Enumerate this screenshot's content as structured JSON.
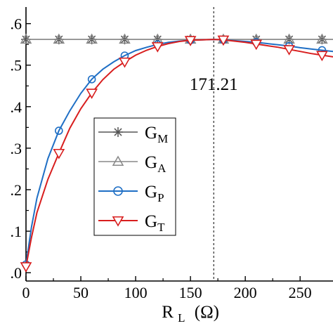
{
  "chart_data": {
    "type": "line",
    "xlabel": {
      "main": "R",
      "sub": "L",
      "unit": "(Ω)"
    },
    "ylabel": "",
    "xlim": [
      0,
      280
    ],
    "ylim": [
      -0.02,
      0.64
    ],
    "xticks": [
      0,
      50,
      100,
      150,
      200,
      250
    ],
    "xtick_labels": [
      "0",
      "50",
      "100",
      "150",
      "200",
      "250"
    ],
    "yticks": [
      0.0,
      0.1,
      0.2,
      0.3,
      0.4,
      0.5,
      0.6
    ],
    "ytick_labels": [
      ".0",
      ".1",
      ".2",
      ".3",
      ".4",
      ".5",
      ".6"
    ],
    "annotation": {
      "x": 171.21,
      "text": "171.21"
    },
    "legend_position": "center-left",
    "grid": false,
    "series": [
      {
        "name": "G",
        "sub": "M",
        "color": "#555555",
        "marker": "asterisk",
        "x": [
          0,
          30,
          60,
          90,
          120,
          150,
          180,
          210,
          240,
          270,
          280
        ],
        "y": [
          0.562,
          0.562,
          0.562,
          0.562,
          0.562,
          0.562,
          0.562,
          0.562,
          0.562,
          0.562,
          0.562
        ],
        "marker_x": [
          0,
          30,
          60,
          90,
          120,
          150,
          180,
          210,
          240,
          270
        ]
      },
      {
        "name": "G",
        "sub": "A",
        "color": "#888888",
        "marker": "triangle-up",
        "x": [
          0,
          30,
          60,
          90,
          120,
          150,
          180,
          210,
          240,
          270,
          280
        ],
        "y": [
          0.562,
          0.562,
          0.562,
          0.562,
          0.562,
          0.562,
          0.562,
          0.562,
          0.562,
          0.562,
          0.562
        ],
        "marker_x": [
          0,
          30,
          60,
          90,
          120,
          150,
          180,
          210,
          240,
          270
        ]
      },
      {
        "name": "G",
        "sub": "P",
        "color": "#1f6fc5",
        "marker": "circle",
        "x": [
          0,
          5,
          10,
          20,
          30,
          40,
          50,
          60,
          70,
          80,
          90,
          100,
          110,
          120,
          130,
          140,
          150,
          160,
          171.21,
          180,
          190,
          200,
          210,
          220,
          230,
          240,
          250,
          260,
          270,
          280
        ],
        "y": [
          0.02,
          0.11,
          0.18,
          0.275,
          0.342,
          0.39,
          0.432,
          0.466,
          0.49,
          0.508,
          0.523,
          0.535,
          0.543,
          0.55,
          0.555,
          0.558,
          0.56,
          0.561,
          0.562,
          0.561,
          0.559,
          0.557,
          0.555,
          0.552,
          0.549,
          0.546,
          0.542,
          0.539,
          0.536,
          0.533
        ],
        "marker_x": [
          0,
          30,
          60,
          90,
          120,
          150,
          180,
          210,
          240,
          270
        ]
      },
      {
        "name": "G",
        "sub": "T",
        "color": "#d81e1e",
        "marker": "triangle-down",
        "x": [
          0,
          5,
          10,
          20,
          30,
          40,
          50,
          60,
          70,
          80,
          90,
          100,
          110,
          120,
          130,
          140,
          150,
          160,
          171.21,
          180,
          190,
          200,
          210,
          220,
          230,
          240,
          250,
          260,
          270,
          280
        ],
        "y": [
          0.015,
          0.085,
          0.145,
          0.225,
          0.288,
          0.348,
          0.395,
          0.433,
          0.465,
          0.49,
          0.508,
          0.524,
          0.536,
          0.545,
          0.552,
          0.557,
          0.56,
          0.561,
          0.562,
          0.561,
          0.558,
          0.555,
          0.551,
          0.547,
          0.543,
          0.538,
          0.533,
          0.528,
          0.524,
          0.52
        ],
        "marker_x": [
          0,
          30,
          60,
          90,
          120,
          150,
          180,
          210,
          240,
          270
        ]
      }
    ]
  }
}
